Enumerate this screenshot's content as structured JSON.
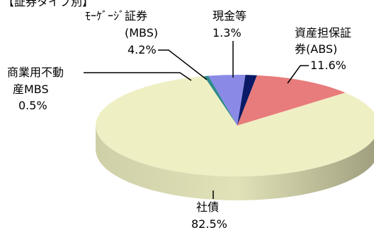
{
  "chart_data": {
    "type": "pie",
    "style": "3d",
    "header": "【証券タイプ別】",
    "slices": [
      {
        "name_lines": [
          "資産担保証",
          "券(ABS)"
        ],
        "value": 11.6,
        "value_label": "11.6%",
        "color": "#E87C7C"
      },
      {
        "name_lines": [
          "社債"
        ],
        "value": 82.5,
        "value_label": "82.5%",
        "color": "#EFEFC4"
      },
      {
        "name_lines": [
          "商業用不動",
          "産MBS"
        ],
        "value": 0.5,
        "value_label": "0.5%",
        "color": "#2E8B8B"
      },
      {
        "name_lines": [
          "ﾓｰｹﾞｰｼﾞ証券",
          "(MBS)"
        ],
        "value": 4.2,
        "value_label": "4.2%",
        "color": "#8A8AE6"
      },
      {
        "name_lines": [
          "現金等"
        ],
        "value": 1.3,
        "value_label": "1.3%",
        "color": "#0A1A66"
      }
    ]
  }
}
